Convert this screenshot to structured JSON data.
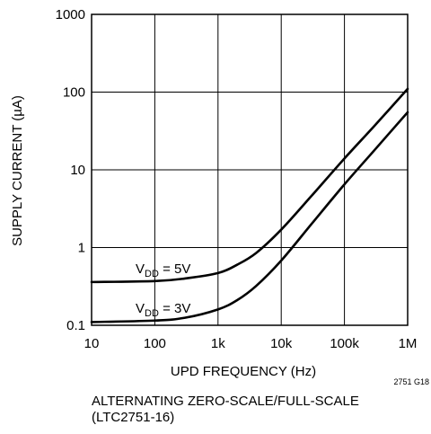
{
  "chart_data": {
    "type": "line",
    "xlabel": "UPD FREQUENCY (Hz)",
    "ylabel": "SUPPLY CURRENT (µA)",
    "x_scale": "log",
    "y_scale": "log",
    "xlim": [
      10,
      1000000
    ],
    "ylim": [
      0.1,
      1000
    ],
    "x_ticks": [
      10,
      100,
      1000,
      10000,
      100000,
      1000000
    ],
    "x_tick_labels": [
      "10",
      "100",
      "1k",
      "10k",
      "100k",
      "1M"
    ],
    "y_ticks": [
      0.1,
      1,
      10,
      100,
      1000
    ],
    "y_tick_labels": [
      "0.1",
      "1",
      "10",
      "100",
      "1000"
    ],
    "grid": true,
    "series": [
      {
        "name": "VDD = 5V",
        "label_main": "V",
        "label_sub": "DD",
        "label_tail": " = 5V",
        "x": [
          10,
          100,
          300,
          1000,
          2000,
          4000,
          10000,
          30000,
          100000,
          300000,
          1000000
        ],
        "y": [
          0.36,
          0.37,
          0.4,
          0.47,
          0.6,
          0.85,
          1.7,
          4.6,
          14,
          37,
          110
        ]
      },
      {
        "name": "VDD = 3V",
        "label_main": "V",
        "label_sub": "DD",
        "label_tail": " = 3V",
        "x": [
          10,
          100,
          300,
          1000,
          2000,
          4000,
          10000,
          30000,
          100000,
          300000,
          1000000
        ],
        "y": [
          0.11,
          0.115,
          0.125,
          0.16,
          0.21,
          0.32,
          0.68,
          2.0,
          6.5,
          18,
          55
        ]
      }
    ]
  },
  "figure_id": "2751 G18",
  "caption": {
    "line1": "ALTERNATING ZERO-SCALE/FULL-SCALE",
    "line2": "(LTC2751-16)"
  }
}
